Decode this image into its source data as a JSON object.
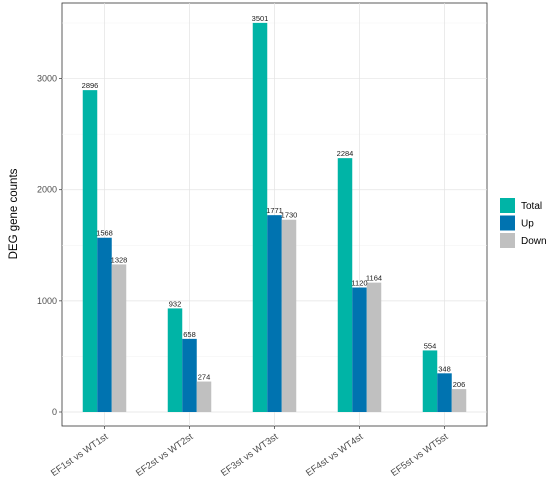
{
  "chart_data": {
    "type": "bar",
    "categories": [
      "EF1st vs WT1st",
      "EF2st vs WT2st",
      "EF3st vs WT3st",
      "EF4st vs WT4st",
      "EF5st vs WT5st"
    ],
    "series": [
      {
        "name": "Total",
        "color": "#00b4a6",
        "values": [
          2896,
          932,
          3501,
          2284,
          554
        ]
      },
      {
        "name": "Up",
        "color": "#0073b0",
        "values": [
          1568,
          658,
          1771,
          1120,
          348
        ]
      },
      {
        "name": "Down",
        "color": "#c0c0c0",
        "values": [
          1328,
          274,
          1730,
          1164,
          206
        ]
      }
    ],
    "xlabel": "",
    "ylabel": "DEG gene counts",
    "ylim": [
      0,
      3600
    ],
    "yticks": [
      0,
      1000,
      2000,
      3000
    ],
    "grid": true,
    "legend_position": "right"
  }
}
